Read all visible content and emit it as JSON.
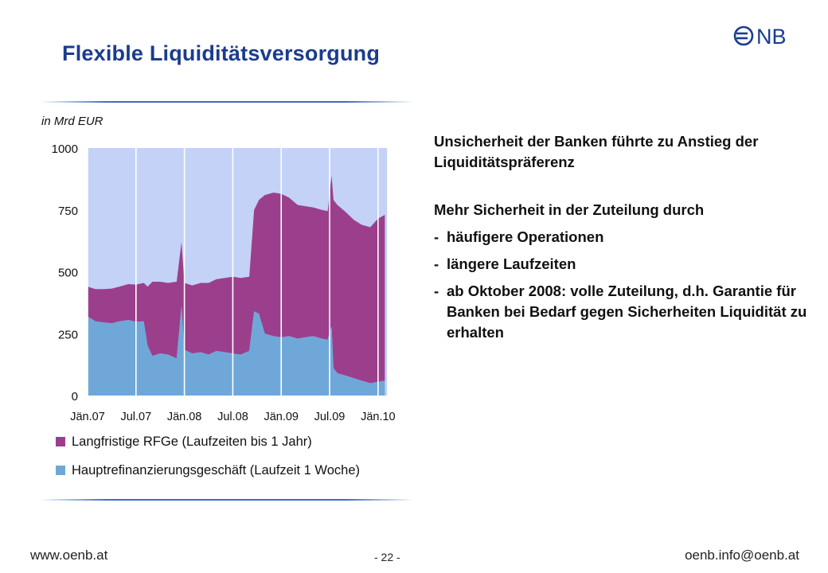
{
  "slide": {
    "title": "Flexible Liquiditätsversorgung",
    "logo_text": "ONB"
  },
  "colors": {
    "title": "#1a3c8e",
    "rule": "#3a6fbf",
    "plot_bg": "#c3d2f6",
    "long_term": "#9b3f8c",
    "main_refi": "#6fa8d8"
  },
  "text": {
    "para1": "Unsicherheit der Banken führte zu Anstieg der Liquiditätspräferenz",
    "para2": "Mehr Sicherheit in der Zuteilung durch",
    "bullets": [
      "häufigere Operationen",
      "längere Laufzeiten",
      "ab Oktober 2008: volle Zuteilung, d.h. Garantie für Banken bei Bedarf gegen Sicherheiten Liquidität zu erhalten"
    ]
  },
  "footer": {
    "website": "www.oenb.at",
    "page": "- 22 -",
    "email": "oenb.info@oenb.at"
  },
  "chart_data": {
    "type": "area",
    "stacked": true,
    "unit_label": "in Mrd EUR",
    "xlabel": "",
    "ylabel": "",
    "ylim": [
      0,
      1000
    ],
    "yticks": [
      0,
      250,
      500,
      750,
      1000
    ],
    "xlim": [
      2007.0,
      2010.1
    ],
    "xticks": [
      {
        "x": 2007.0,
        "label": "Jän.07"
      },
      {
        "x": 2007.5,
        "label": "Jul.07"
      },
      {
        "x": 2008.0,
        "label": "Jän.08"
      },
      {
        "x": 2008.5,
        "label": "Jul.08"
      },
      {
        "x": 2009.0,
        "label": "Jän.09"
      },
      {
        "x": 2009.5,
        "label": "Jul.09"
      },
      {
        "x": 2010.0,
        "label": "Jän.10"
      }
    ],
    "grid": true,
    "legend_position": "bottom",
    "x": [
      2007.0,
      2007.08,
      2007.17,
      2007.25,
      2007.33,
      2007.42,
      2007.5,
      2007.58,
      2007.62,
      2007.67,
      2007.75,
      2007.83,
      2007.92,
      2007.97,
      2008.0,
      2008.08,
      2008.17,
      2008.25,
      2008.33,
      2008.42,
      2008.5,
      2008.58,
      2008.67,
      2008.72,
      2008.77,
      2008.83,
      2008.92,
      2009.0,
      2009.08,
      2009.17,
      2009.25,
      2009.33,
      2009.42,
      2009.48,
      2009.52,
      2009.54,
      2009.58,
      2009.67,
      2009.75,
      2009.83,
      2009.92,
      2010.0,
      2010.07
    ],
    "series": [
      {
        "name": "Hauptrefinanzierungsgeschäft (Laufzeit 1 Woche)",
        "values": [
          320,
          300,
          295,
          292,
          300,
          305,
          298,
          300,
          200,
          160,
          170,
          165,
          150,
          360,
          185,
          170,
          175,
          165,
          180,
          175,
          170,
          165,
          180,
          340,
          330,
          250,
          240,
          235,
          240,
          230,
          235,
          240,
          230,
          225,
          280,
          110,
          90,
          80,
          70,
          60,
          50,
          55,
          60
        ]
      },
      {
        "name": "Langfristige RFGe (Laufzeiten bis 1 Jahr)",
        "values": [
          120,
          130,
          135,
          140,
          140,
          145,
          150,
          155,
          240,
          300,
          290,
          290,
          310,
          260,
          270,
          275,
          280,
          290,
          290,
          300,
          310,
          310,
          300,
          410,
          460,
          560,
          580,
          580,
          560,
          540,
          530,
          520,
          520,
          520,
          610,
          680,
          680,
          660,
          640,
          630,
          630,
          660,
          670
        ]
      }
    ]
  }
}
